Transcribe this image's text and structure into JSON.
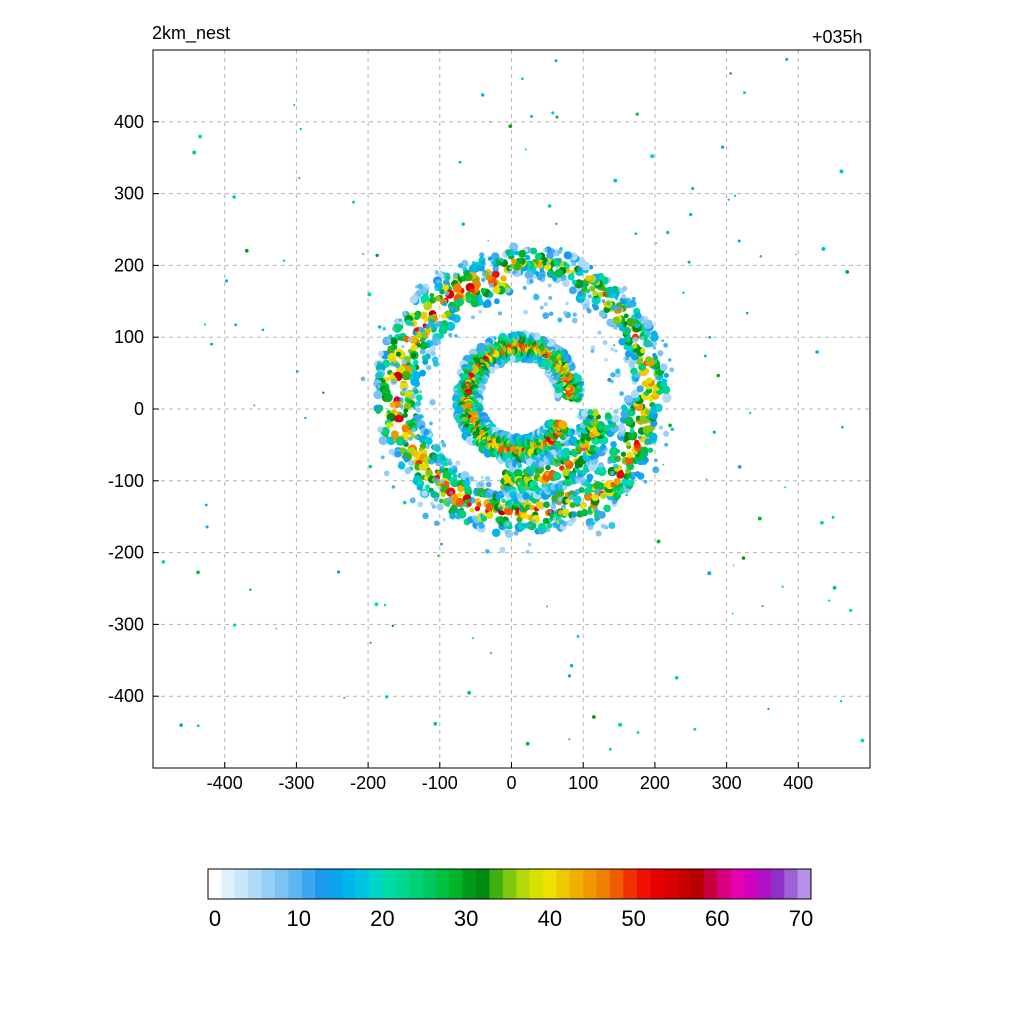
{
  "chart_data": {
    "type": "heatmap",
    "title_left": "2km_nest",
    "title_right": "+035h",
    "xlabel": "",
    "ylabel": "",
    "xlim": [
      -500,
      500
    ],
    "ylim": [
      -500,
      500
    ],
    "xticks": [
      -400,
      -300,
      -200,
      -100,
      0,
      100,
      200,
      300,
      400
    ],
    "yticks": [
      400,
      300,
      200,
      100,
      0,
      -100,
      -200,
      -300,
      -400
    ],
    "xtick_labels": [
      "-400",
      "-300",
      "-200",
      "-100",
      "0",
      "100",
      "200",
      "300",
      "400"
    ],
    "ytick_labels": [
      "400",
      "300",
      "200",
      "100",
      "0",
      "-100",
      "-200",
      "-300",
      "-400"
    ],
    "grid": true,
    "colorbar": {
      "min": 0,
      "max": 70,
      "step": 2,
      "tick_values": [
        0,
        10,
        20,
        30,
        40,
        50,
        60,
        70
      ],
      "tick_labels": [
        "0",
        "10",
        "20",
        "30",
        "40",
        "50",
        "60",
        "70"
      ],
      "colors": [
        "#ffffff",
        "#e0f0fc",
        "#c8e6fa",
        "#b0daf8",
        "#96cff6",
        "#7ac3f4",
        "#5cb6f2",
        "#3aa7f0",
        "#1a99ee",
        "#0aa4ec",
        "#00b4ec",
        "#00c4e4",
        "#00d4c8",
        "#00dca8",
        "#00d890",
        "#00d078",
        "#00c860",
        "#00c040",
        "#00b428",
        "#009818",
        "#008a10",
        "#40b010",
        "#80c810",
        "#b4d808",
        "#d8e000",
        "#f0e000",
        "#f0c800",
        "#f0b000",
        "#f09800",
        "#f08000",
        "#f05a00",
        "#f03000",
        "#f01000",
        "#e80000",
        "#d80000",
        "#c80000",
        "#b40000",
        "#c80040",
        "#d80080",
        "#e800b4",
        "#d000c0",
        "#b010c8",
        "#9030c8",
        "#a060d8",
        "#b890e8"
      ]
    }
  }
}
